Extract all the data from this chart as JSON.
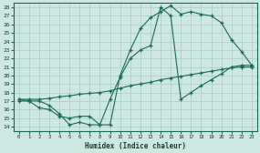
{
  "xlabel": "Humidex (Indice chaleur)",
  "bg_color": "#cce8e0",
  "grid_color": "#aaccc4",
  "line_color": "#1a6b5a",
  "xlim": [
    -0.5,
    23.5
  ],
  "ylim": [
    13.5,
    28.5
  ],
  "xticks": [
    0,
    1,
    2,
    3,
    4,
    5,
    6,
    7,
    8,
    9,
    10,
    11,
    12,
    13,
    14,
    15,
    16,
    17,
    18,
    19,
    20,
    21,
    22,
    23
  ],
  "yticks": [
    14,
    15,
    16,
    17,
    18,
    19,
    20,
    21,
    22,
    23,
    24,
    25,
    26,
    27,
    28
  ],
  "curve1_x": [
    0,
    1,
    2,
    3,
    4,
    5,
    6,
    7,
    8,
    9,
    10,
    11,
    12,
    13,
    14,
    15,
    16,
    17,
    18,
    19,
    20,
    21,
    22,
    23
  ],
  "curve1_y": [
    17.0,
    17.0,
    17.0,
    16.5,
    15.5,
    14.2,
    14.5,
    14.2,
    14.2,
    14.2,
    20.0,
    23.0,
    25.5,
    26.8,
    27.5,
    28.2,
    27.2,
    27.5,
    27.2,
    27.0,
    26.2,
    24.2,
    22.8,
    21.2
  ],
  "curve2_x": [
    0,
    1,
    2,
    3,
    4,
    5,
    6,
    7,
    8,
    9,
    10,
    11,
    12,
    13,
    14,
    15,
    16,
    17,
    18,
    19,
    20,
    21,
    22,
    23
  ],
  "curve2_y": [
    17.2,
    17.0,
    16.2,
    16.0,
    15.2,
    15.0,
    15.2,
    15.2,
    14.2,
    17.2,
    19.8,
    22.0,
    23.0,
    23.5,
    28.0,
    27.0,
    17.2,
    18.0,
    18.8,
    19.5,
    20.2,
    21.0,
    21.2,
    21.2
  ],
  "curve3_x": [
    0,
    1,
    2,
    3,
    4,
    5,
    6,
    7,
    8,
    9,
    10,
    11,
    12,
    13,
    14,
    15,
    16,
    17,
    18,
    19,
    20,
    21,
    22,
    23
  ],
  "curve3_y": [
    17.2,
    17.2,
    17.2,
    17.3,
    17.5,
    17.6,
    17.8,
    17.9,
    18.0,
    18.2,
    18.5,
    18.8,
    19.0,
    19.2,
    19.5,
    19.7,
    19.9,
    20.1,
    20.3,
    20.5,
    20.7,
    20.9,
    21.0,
    21.0
  ]
}
